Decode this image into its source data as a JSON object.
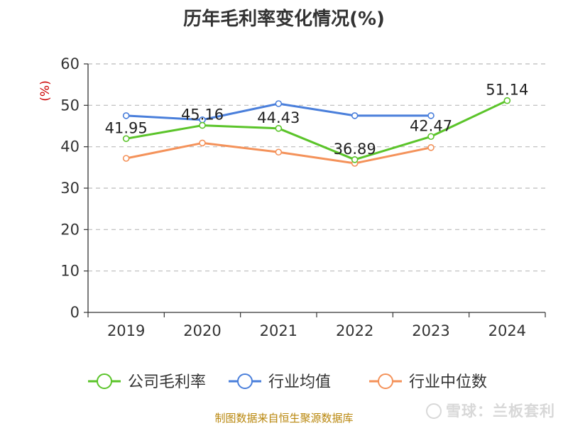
{
  "title": "历年毛利率变化情况(%)",
  "source_note": "制图数据来自恒生聚源数据库",
  "watermark": "雪球：兰板套利",
  "colors": {
    "company": "#5bc42a",
    "industry_avg": "#4a7fdb",
    "industry_median": "#f4925a",
    "grid": "#bbbbbb",
    "axis": "#333333",
    "unit": "#cc0000"
  },
  "chart_data": {
    "type": "line",
    "title": "历年毛利率变化情况(%)",
    "ylabel": "(%)",
    "xlabel": "",
    "categories": [
      "2019",
      "2020",
      "2021",
      "2022",
      "2023",
      "2024"
    ],
    "ylim": [
      0,
      60
    ],
    "yticks": [
      0,
      10,
      20,
      30,
      40,
      50,
      60
    ],
    "grid": true,
    "legend_position": "bottom",
    "series": [
      {
        "name": "公司毛利率",
        "color": "#5bc42a",
        "values": [
          41.95,
          45.16,
          44.43,
          36.89,
          42.47,
          51.14
        ],
        "labels": [
          "41.95",
          "45.16",
          "44.43",
          "36.89",
          "42.47",
          "51.14"
        ]
      },
      {
        "name": "行业均值",
        "color": "#4a7fdb",
        "values": [
          47.5,
          46.5,
          50.4,
          47.5,
          47.5,
          null
        ]
      },
      {
        "name": "行业中位数",
        "color": "#f4925a",
        "values": [
          37.2,
          40.9,
          38.7,
          36.0,
          39.8,
          null
        ]
      }
    ]
  }
}
